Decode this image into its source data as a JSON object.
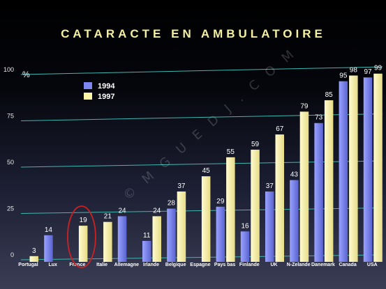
{
  "chart_data": {
    "type": "bar",
    "title": "CATARACTE EN AMBULATOIRE",
    "unit": "%",
    "categories": [
      "Portugal",
      "Lux",
      "France",
      "Italie",
      "Allemagne",
      "Irlande",
      "Belgique",
      "Espagne",
      "Pays bas",
      "Finlande",
      "UK",
      "N-Zelande",
      "Danemark",
      "Canada",
      "USA"
    ],
    "series": [
      {
        "name": "1994",
        "color": "#7d86f0",
        "values": [
          null,
          14,
          null,
          null,
          24,
          11,
          28,
          null,
          29,
          16,
          37,
          43,
          73,
          95,
          97
        ]
      },
      {
        "name": "1997",
        "color": "#fdf6a6",
        "values": [
          3,
          null,
          19,
          21,
          null,
          24,
          37,
          45,
          55,
          59,
          67,
          79,
          85,
          98,
          99
        ]
      }
    ],
    "data_labels": {
      "1994": [
        "",
        "14",
        "",
        "",
        "24",
        "11",
        "28",
        "",
        "29",
        "16",
        "37",
        "43",
        "73",
        "95",
        "97"
      ],
      "1997": [
        "3",
        "",
        "19",
        "21",
        "",
        "24",
        "37",
        "45",
        "55",
        "59",
        "67",
        "79",
        "85",
        "98",
        "99"
      ]
    },
    "yticks": [
      0,
      25,
      50,
      75,
      100
    ],
    "ylim": [
      0,
      100
    ],
    "grid": true,
    "legend_position": "top-left",
    "highlight": {
      "category": "France",
      "shape": "ellipse",
      "color": "#cc2222"
    },
    "watermark": "© M G U E D J . C O M",
    "colors": {
      "gridline": "#3fb8b0",
      "background_top": "#000000",
      "background_bottom": "#3a3d54",
      "title": "#f4f0a0"
    }
  }
}
